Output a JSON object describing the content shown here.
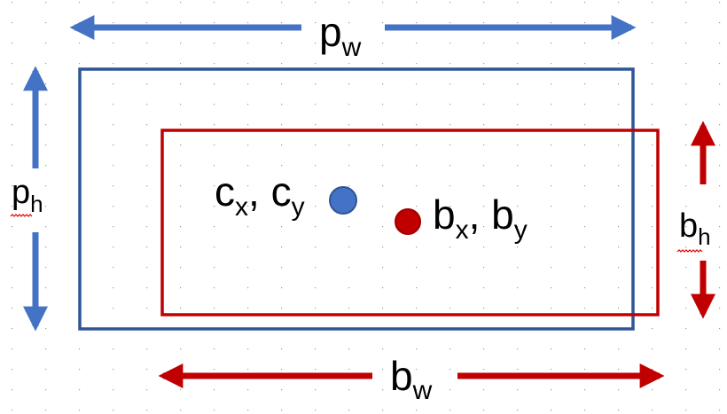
{
  "colors": {
    "prior": "#4472C4",
    "prior_border": "#2F5597",
    "box": "#C00000",
    "grid": "#9a9a9a",
    "text": "#000000",
    "squiggle": "#E00000"
  },
  "labels": {
    "pw": {
      "base": "p",
      "sub": "w"
    },
    "ph": {
      "base": "p",
      "sub": "h"
    },
    "bw": {
      "base": "b",
      "sub": "w"
    },
    "bh": {
      "base": "b",
      "sub": "h"
    },
    "center_prior": {
      "a_base": "c",
      "a_sub": "x",
      "sep": ", ",
      "b_base": "c",
      "b_sub": "y"
    },
    "center_box": {
      "a_base": "b",
      "a_sub": "x",
      "sep": ", ",
      "b_base": "b",
      "b_sub": "y"
    }
  }
}
